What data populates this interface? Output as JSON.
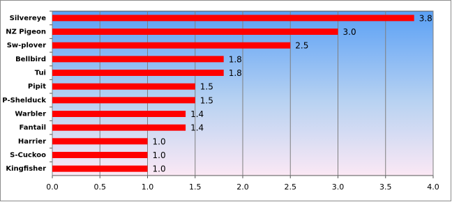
{
  "chart_data": {
    "type": "bar",
    "orientation": "horizontal",
    "categories": [
      "Silvereye",
      "NZ Pigeon",
      "Sw-plover",
      "Bellbird",
      "Tui",
      "Pipit",
      "P-Shelduck",
      "Warbler",
      "Fantail",
      "Harrier",
      "S-Cuckoo",
      "Kingfisher"
    ],
    "values": [
      3.8,
      3.0,
      2.5,
      1.8,
      1.8,
      1.5,
      1.5,
      1.4,
      1.4,
      1.0,
      1.0,
      1.0
    ],
    "value_labels": [
      "3.8",
      "3.0",
      "2.5",
      "1.8",
      "1.8",
      "1.5",
      "1.5",
      "1.4",
      "1.4",
      "1.0",
      "1.0",
      "1.0"
    ],
    "color": "#ff0000",
    "xlim": [
      0,
      4
    ],
    "xticks": [
      {
        "value": 0,
        "label": "0.0"
      },
      0.5,
      {
        "value": 1,
        "label": "1.0"
      },
      1.5,
      {
        "value": 2,
        "label": "2.0"
      },
      2.5,
      {
        "value": 3,
        "label": "3.0"
      },
      3.5,
      {
        "value": 4,
        "label": "4.0"
      }
    ],
    "grid": true
  }
}
